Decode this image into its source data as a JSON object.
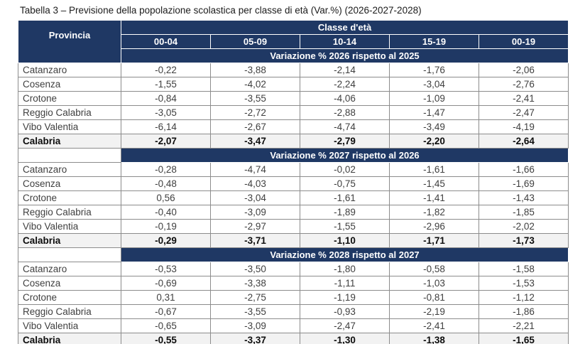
{
  "title": "Tabella 3 – Previsione della popolazione scolastica per classe di età (Var.%) (2026-2027-2028)",
  "colors": {
    "header_navy": "#1F3864",
    "total_row_bg": "#F2F2F2",
    "border_gray": "#8c8c8c",
    "header_text": "#ffffff"
  },
  "table": {
    "corner_label": "Provincia",
    "group_header": "Classe d'età",
    "age_columns": [
      "00-04",
      "05-09",
      "10-14",
      "15-19",
      "00-19"
    ],
    "sections": [
      {
        "banner": "Variazione % 2026 rispetto al 2025",
        "rows": [
          {
            "provincia": "Catanzaro",
            "values": [
              "-0,22",
              "-3,88",
              "-2,14",
              "-1,76",
              "-2,06"
            ]
          },
          {
            "provincia": "Cosenza",
            "values": [
              "-1,55",
              "-4,02",
              "-2,24",
              "-3,04",
              "-2,76"
            ]
          },
          {
            "provincia": "Crotone",
            "values": [
              "-0,84",
              "-3,55",
              "-4,06",
              "-1,09",
              "-2,41"
            ]
          },
          {
            "provincia": "Reggio Calabria",
            "values": [
              "-3,05",
              "-2,72",
              "-2,88",
              "-1,47",
              "-2,47"
            ]
          },
          {
            "provincia": "Vibo Valentia",
            "values": [
              "-6,14",
              "-2,67",
              "-4,74",
              "-3,49",
              "-4,19"
            ]
          },
          {
            "provincia": "Calabria",
            "values": [
              "-2,07",
              "-3,47",
              "-2,79",
              "-2,20",
              "-2,64"
            ],
            "is_total": true
          }
        ]
      },
      {
        "banner": "Variazione % 2027 rispetto al 2026",
        "rows": [
          {
            "provincia": "Catanzaro",
            "values": [
              "-0,28",
              "-4,74",
              "-0,02",
              "-1,61",
              "-1,66"
            ]
          },
          {
            "provincia": "Cosenza",
            "values": [
              "-0,48",
              "-4,03",
              "-0,75",
              "-1,45",
              "-1,69"
            ]
          },
          {
            "provincia": "Crotone",
            "values": [
              "0,56",
              "-3,04",
              "-1,61",
              "-1,41",
              "-1,43"
            ]
          },
          {
            "provincia": "Reggio Calabria",
            "values": [
              "-0,40",
              "-3,09",
              "-1,89",
              "-1,82",
              "-1,85"
            ]
          },
          {
            "provincia": "Vibo Valentia",
            "values": [
              "-0,19",
              "-2,97",
              "-1,55",
              "-2,96",
              "-2,02"
            ]
          },
          {
            "provincia": "Calabria",
            "values": [
              "-0,29",
              "-3,71",
              "-1,10",
              "-1,71",
              "-1,73"
            ],
            "is_total": true
          }
        ]
      },
      {
        "banner": "Variazione % 2028 rispetto al 2027",
        "rows": [
          {
            "provincia": "Catanzaro",
            "values": [
              "-0,53",
              "-3,50",
              "-1,80",
              "-0,58",
              "-1,58"
            ]
          },
          {
            "provincia": "Cosenza",
            "values": [
              "-0,69",
              "-3,38",
              "-1,11",
              "-1,03",
              "-1,53"
            ]
          },
          {
            "provincia": "Crotone",
            "values": [
              "0,31",
              "-2,75",
              "-1,19",
              "-0,81",
              "-1,12"
            ]
          },
          {
            "provincia": "Reggio Calabria",
            "values": [
              "-0,67",
              "-3,55",
              "-0,93",
              "-2,19",
              "-1,86"
            ]
          },
          {
            "provincia": "Vibo Valentia",
            "values": [
              "-0,65",
              "-3,09",
              "-2,47",
              "-2,41",
              "-2,21"
            ]
          },
          {
            "provincia": "Calabria",
            "values": [
              "-0,55",
              "-3,37",
              "-1,30",
              "-1,38",
              "-1,65"
            ],
            "is_total": true
          }
        ]
      }
    ]
  }
}
